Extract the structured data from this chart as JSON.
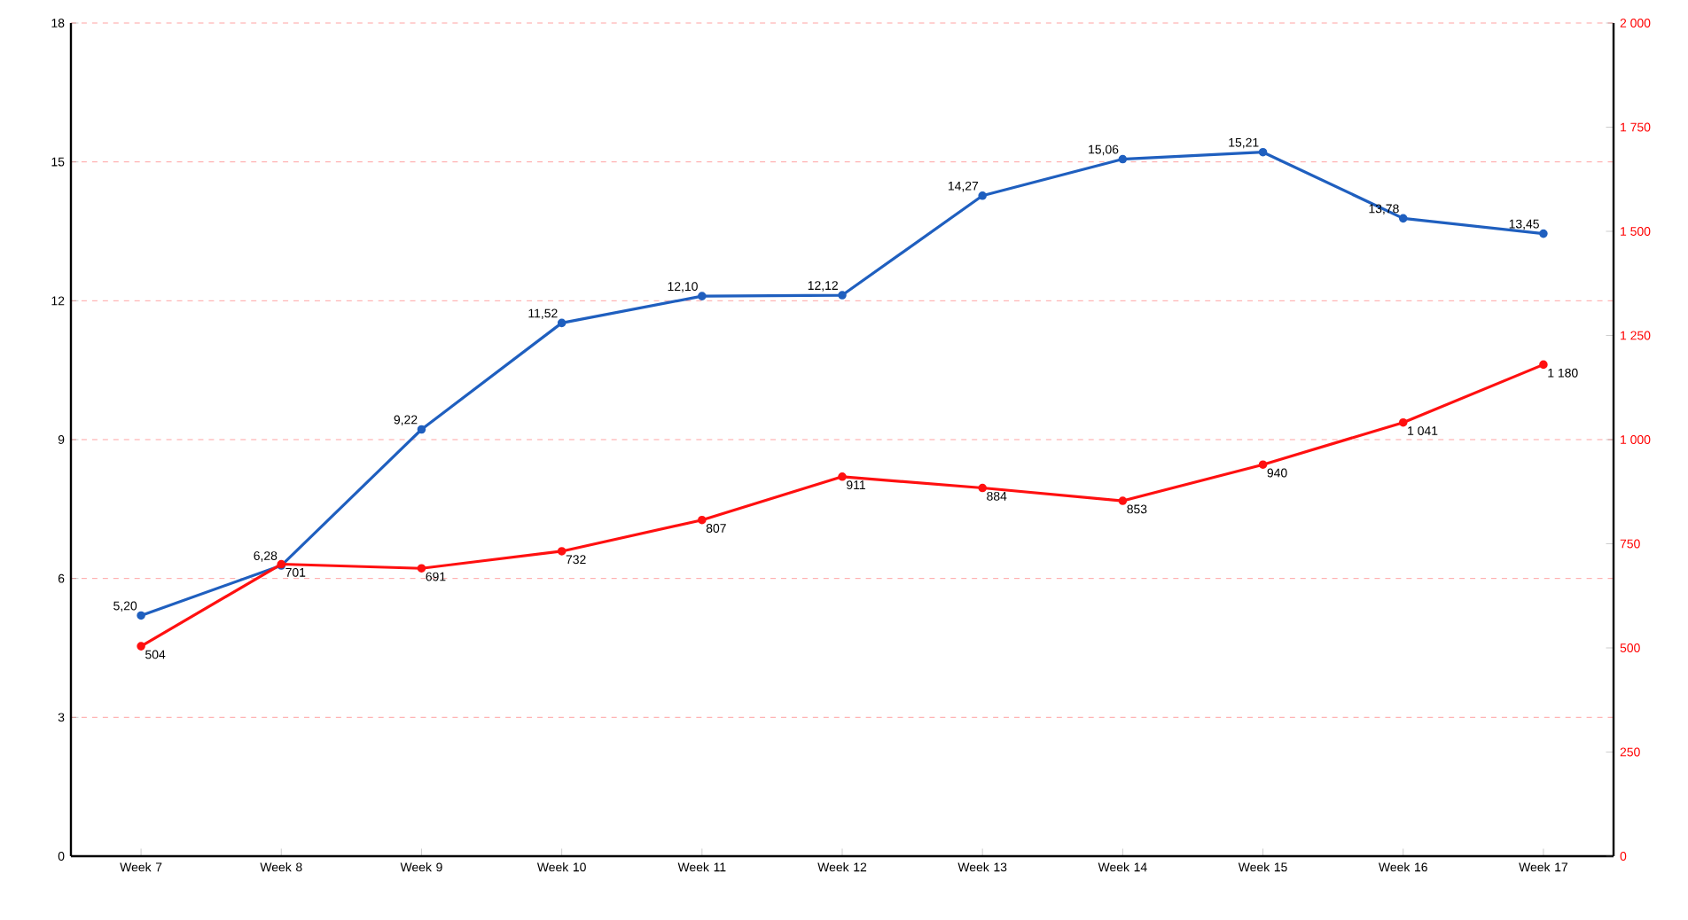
{
  "chart_data": {
    "type": "line",
    "categories": [
      "Week 7",
      "Week 8",
      "Week 9",
      "Week 10",
      "Week 11",
      "Week 12",
      "Week 13",
      "Week 14",
      "Week 15",
      "Week 16",
      "Week 17"
    ],
    "series": [
      {
        "color": "#1f5fbf",
        "values": [
          5.2,
          6.28,
          9.22,
          11.52,
          12.1,
          12.12,
          14.27,
          15.06,
          15.21,
          13.78,
          13.45
        ],
        "value_labels": [
          "5,20",
          "6,28",
          "9,22",
          "11,52",
          "12,10",
          "12,12",
          "14,27",
          "15,06",
          "15,21",
          "13,78",
          "13,45"
        ]
      },
      {
        "color": "#ff1010",
        "axis": "y2",
        "values": [
          504,
          701,
          691,
          732,
          807,
          911,
          884,
          853,
          940,
          1041,
          1180
        ],
        "value_labels": [
          "504",
          "701",
          "691",
          "732",
          "807",
          "911",
          "884",
          "853",
          "940",
          "1 041",
          "1 180"
        ]
      }
    ],
    "ylim": [
      0,
      18
    ],
    "yticks": [
      0,
      3,
      6,
      9,
      12,
      15,
      18
    ],
    "y2lim": [
      0,
      2000
    ],
    "y2ticks": [
      {
        "value": 0,
        "label": "0"
      },
      {
        "value": 250,
        "label": "250"
      },
      {
        "value": 500,
        "label": "500"
      },
      {
        "value": 750,
        "label": "750"
      },
      {
        "value": 1000,
        "label": "1 000"
      },
      {
        "value": 1250,
        "label": "1 250"
      },
      {
        "value": 1500,
        "label": "1 500"
      },
      {
        "value": 1750,
        "label": "1 750"
      },
      {
        "value": 2000,
        "label": "2 000"
      }
    ],
    "grid": "y",
    "marker": "circle",
    "line_style": "solid"
  }
}
